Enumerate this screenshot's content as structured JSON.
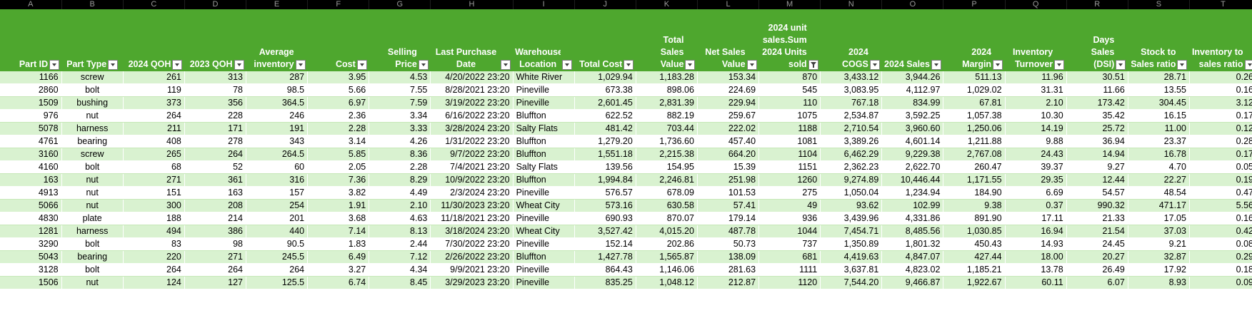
{
  "columns": [
    "A",
    "B",
    "C",
    "D",
    "E",
    "F",
    "G",
    "H",
    "I",
    "J",
    "K",
    "L",
    "M",
    "N",
    "O",
    "P",
    "Q",
    "R",
    "S",
    "T"
  ],
  "headers": [
    "Part ID",
    "Part Type",
    "2024 QOH",
    "2023 QOH",
    "Average inventory",
    "Cost",
    "Selling Price",
    "Last Purchase Date",
    "Warehouse Location",
    "Total Cost",
    "Total Sales Value",
    "Net Sales Value",
    "2024 unit sales.Sum 2024 Units sold",
    "2024 COGS",
    "2024 Sales",
    "2024 Margin",
    "Inventory Turnover",
    "Days Sales (DSI)",
    "Stock to Sales ratio",
    "Inventory to sales ratio"
  ],
  "rows": [
    [
      "1166",
      "screw",
      "261",
      "313",
      "287",
      "3.95",
      "4.53",
      "4/20/2022 23:20",
      "White River",
      "1,029.94",
      "1,183.28",
      "153.34",
      "870",
      "3,433.12",
      "3,944.26",
      "511.13",
      "11.96",
      "30.51",
      "28.71",
      "0.26"
    ],
    [
      "2860",
      "bolt",
      "119",
      "78",
      "98.5",
      "5.66",
      "7.55",
      "8/28/2021 23:20",
      "Pineville",
      "673.38",
      "898.06",
      "224.69",
      "545",
      "3,083.95",
      "4,112.97",
      "1,029.02",
      "31.31",
      "11.66",
      "13.55",
      "0.16"
    ],
    [
      "1509",
      "bushing",
      "373",
      "356",
      "364.5",
      "6.97",
      "7.59",
      "3/19/2022 23:20",
      "Pineville",
      "2,601.45",
      "2,831.39",
      "229.94",
      "110",
      "767.18",
      "834.99",
      "67.81",
      "2.10",
      "173.42",
      "304.45",
      "3.12"
    ],
    [
      "976",
      "nut",
      "264",
      "228",
      "246",
      "2.36",
      "3.34",
      "6/16/2022 23:20",
      "Bluffton",
      "622.52",
      "882.19",
      "259.67",
      "1075",
      "2,534.87",
      "3,592.25",
      "1,057.38",
      "10.30",
      "35.42",
      "16.15",
      "0.17"
    ],
    [
      "5078",
      "harness",
      "211",
      "171",
      "191",
      "2.28",
      "3.33",
      "3/28/2024 23:20",
      "Salty Flats",
      "481.42",
      "703.44",
      "222.02",
      "1188",
      "2,710.54",
      "3,960.60",
      "1,250.06",
      "14.19",
      "25.72",
      "11.00",
      "0.12"
    ],
    [
      "4761",
      "bearing",
      "408",
      "278",
      "343",
      "3.14",
      "4.26",
      "1/31/2022 23:20",
      "Bluffton",
      "1,279.20",
      "1,736.60",
      "457.40",
      "1081",
      "3,389.26",
      "4,601.14",
      "1,211.88",
      "9.88",
      "36.94",
      "23.37",
      "0.28"
    ],
    [
      "3160",
      "screw",
      "265",
      "264",
      "264.5",
      "5.85",
      "8.36",
      "9/7/2022 23:20",
      "Bluffton",
      "1,551.18",
      "2,215.38",
      "664.20",
      "1104",
      "6,462.29",
      "9,229.38",
      "2,767.08",
      "24.43",
      "14.94",
      "16.78",
      "0.17"
    ],
    [
      "4160",
      "bolt",
      "68",
      "52",
      "60",
      "2.05",
      "2.28",
      "7/4/2021 23:20",
      "Salty Flats",
      "139.56",
      "154.95",
      "15.39",
      "1151",
      "2,362.23",
      "2,622.70",
      "260.47",
      "39.37",
      "9.27",
      "4.70",
      "0.05"
    ],
    [
      "163",
      "nut",
      "271",
      "361",
      "316",
      "7.36",
      "8.29",
      "10/9/2022 23:20",
      "Bluffton",
      "1,994.84",
      "2,246.81",
      "251.98",
      "1260",
      "9,274.89",
      "10,446.44",
      "1,171.55",
      "29.35",
      "12.44",
      "22.27",
      "0.19"
    ],
    [
      "4913",
      "nut",
      "151",
      "163",
      "157",
      "3.82",
      "4.49",
      "2/3/2024 23:20",
      "Pineville",
      "576.57",
      "678.09",
      "101.53",
      "275",
      "1,050.04",
      "1,234.94",
      "184.90",
      "6.69",
      "54.57",
      "48.54",
      "0.47"
    ],
    [
      "5066",
      "nut",
      "300",
      "208",
      "254",
      "1.91",
      "2.10",
      "11/30/2023 23:20",
      "Wheat City",
      "573.16",
      "630.58",
      "57.41",
      "49",
      "93.62",
      "102.99",
      "9.38",
      "0.37",
      "990.32",
      "471.17",
      "5.56"
    ],
    [
      "4830",
      "plate",
      "188",
      "214",
      "201",
      "3.68",
      "4.63",
      "11/18/2021 23:20",
      "Pineville",
      "690.93",
      "870.07",
      "179.14",
      "936",
      "3,439.96",
      "4,331.86",
      "891.90",
      "17.11",
      "21.33",
      "17.05",
      "0.16"
    ],
    [
      "1281",
      "harness",
      "494",
      "386",
      "440",
      "7.14",
      "8.13",
      "3/18/2024 23:20",
      "Wheat City",
      "3,527.42",
      "4,015.20",
      "487.78",
      "1044",
      "7,454.71",
      "8,485.56",
      "1,030.85",
      "16.94",
      "21.54",
      "37.03",
      "0.42"
    ],
    [
      "3290",
      "bolt",
      "83",
      "98",
      "90.5",
      "1.83",
      "2.44",
      "7/30/2022 23:20",
      "Pineville",
      "152.14",
      "202.86",
      "50.73",
      "737",
      "1,350.89",
      "1,801.32",
      "450.43",
      "14.93",
      "24.45",
      "9.21",
      "0.08"
    ],
    [
      "5043",
      "bearing",
      "220",
      "271",
      "245.5",
      "6.49",
      "7.12",
      "2/26/2022 23:20",
      "Bluffton",
      "1,427.78",
      "1,565.87",
      "138.09",
      "681",
      "4,419.63",
      "4,847.07",
      "427.44",
      "18.00",
      "20.27",
      "32.87",
      "0.29"
    ],
    [
      "3128",
      "bolt",
      "264",
      "264",
      "264",
      "3.27",
      "4.34",
      "9/9/2021 23:20",
      "Pineville",
      "864.43",
      "1,146.06",
      "281.63",
      "1111",
      "3,637.81",
      "4,823.02",
      "1,185.21",
      "13.78",
      "26.49",
      "17.92",
      "0.18"
    ],
    [
      "1506",
      "nut",
      "124",
      "127",
      "125.5",
      "6.74",
      "8.45",
      "3/29/2023 23:20",
      "Pineville",
      "835.25",
      "1,048.12",
      "212.87",
      "1120",
      "7,544.20",
      "9,466.87",
      "1,922.67",
      "60.11",
      "6.07",
      "8.93",
      "0.09"
    ]
  ],
  "colors": {
    "header_bg": "#4ea72e",
    "band": "#d9f2d0",
    "letters_bg": "#000000"
  }
}
